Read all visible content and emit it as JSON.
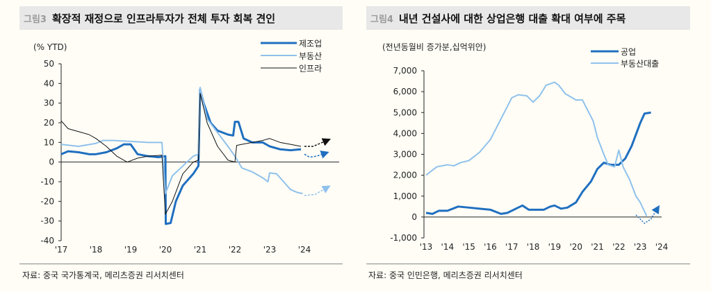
{
  "chart_data": [
    {
      "type": "line",
      "fig": "그림3",
      "title": "확장적 재정으로 인프라투자가 전체 투자 회복 견인",
      "unit": "(% YTD)",
      "ylim": [
        -40,
        50
      ],
      "yticks": [
        50,
        40,
        30,
        20,
        10,
        0,
        -10,
        -20,
        -30,
        -40
      ],
      "xlim": [
        2017,
        2025
      ],
      "xticks": [
        "'17",
        "'18",
        "'19",
        "'20",
        "'21",
        "'22",
        "'23",
        "'24"
      ],
      "source": "자료: 중국 국가통계국, 메리츠증권 리서치센터",
      "legend": "top-right",
      "series": [
        {
          "name": "제조업",
          "color": "#1f6fc0",
          "width": 3,
          "points": [
            [
              2017,
              4
            ],
            [
              2017.2,
              5.5
            ],
            [
              2017.5,
              5
            ],
            [
              2017.8,
              4
            ],
            [
              2018,
              4
            ],
            [
              2018.3,
              5
            ],
            [
              2018.6,
              7
            ],
            [
              2018.8,
              9
            ],
            [
              2019,
              9
            ],
            [
              2019.2,
              4
            ],
            [
              2019.5,
              3
            ],
            [
              2019.8,
              2.5
            ],
            [
              2020,
              3
            ],
            [
              2020.01,
              -31.5
            ],
            [
              2020.15,
              -31
            ],
            [
              2020.3,
              -20
            ],
            [
              2020.5,
              -12
            ],
            [
              2020.8,
              -6
            ],
            [
              2020.95,
              -2
            ],
            [
              2021,
              37
            ],
            [
              2021.1,
              30
            ],
            [
              2021.3,
              20
            ],
            [
              2021.5,
              16
            ],
            [
              2021.8,
              14
            ],
            [
              2021.95,
              13.5
            ],
            [
              2022,
              20.5
            ],
            [
              2022.1,
              20.5
            ],
            [
              2022.25,
              12
            ],
            [
              2022.5,
              10
            ],
            [
              2022.8,
              10
            ],
            [
              2023,
              8
            ],
            [
              2023.3,
              6.5
            ],
            [
              2023.6,
              6
            ],
            [
              2023.9,
              6.5
            ]
          ],
          "forecast": [
            [
              2024,
              4
            ],
            [
              2024.15,
              2.5
            ],
            [
              2024.35,
              3
            ],
            [
              2024.6,
              4.5
            ]
          ]
        },
        {
          "name": "부동산",
          "color": "#8fc1ec",
          "width": 2,
          "points": [
            [
              2017,
              9
            ],
            [
              2017.5,
              8
            ],
            [
              2018,
              9.5
            ],
            [
              2018.2,
              11
            ],
            [
              2018.5,
              11
            ],
            [
              2019,
              10.5
            ],
            [
              2019.5,
              10
            ],
            [
              2019.9,
              10
            ],
            [
              2020,
              -16
            ],
            [
              2020.2,
              -7
            ],
            [
              2020.5,
              -2
            ],
            [
              2020.8,
              3
            ],
            [
              2020.95,
              4
            ],
            [
              2021,
              38
            ],
            [
              2021.2,
              22
            ],
            [
              2021.5,
              15
            ],
            [
              2021.8,
              8
            ],
            [
              2022,
              3
            ],
            [
              2022.2,
              -3
            ],
            [
              2022.5,
              -5
            ],
            [
              2022.8,
              -8
            ],
            [
              2022.95,
              -10
            ],
            [
              2023,
              -5.5
            ],
            [
              2023.2,
              -6
            ],
            [
              2023.4,
              -10
            ],
            [
              2023.6,
              -14
            ],
            [
              2023.8,
              -15.5
            ],
            [
              2023.95,
              -16
            ]
          ],
          "forecast": [
            [
              2024,
              -17
            ],
            [
              2024.3,
              -16.5
            ],
            [
              2024.65,
              -13
            ]
          ]
        },
        {
          "name": "인프라",
          "color": "#111111",
          "width": 1,
          "points": [
            [
              2017,
              21
            ],
            [
              2017.2,
              17
            ],
            [
              2017.5,
              15.5
            ],
            [
              2017.8,
              14
            ],
            [
              2018,
              12
            ],
            [
              2018.3,
              8
            ],
            [
              2018.6,
              3
            ],
            [
              2018.9,
              0
            ],
            [
              2019.2,
              2
            ],
            [
              2019.5,
              3
            ],
            [
              2019.9,
              3.5
            ],
            [
              2020,
              -26.5
            ],
            [
              2020.2,
              -20
            ],
            [
              2020.5,
              -6
            ],
            [
              2020.8,
              0
            ],
            [
              2020.95,
              1
            ],
            [
              2021,
              35
            ],
            [
              2021.2,
              20
            ],
            [
              2021.5,
              8
            ],
            [
              2021.8,
              1
            ],
            [
              2022,
              0
            ],
            [
              2022.05,
              8.5
            ],
            [
              2022.2,
              9
            ],
            [
              2022.5,
              10
            ],
            [
              2022.8,
              11
            ],
            [
              2023,
              12
            ],
            [
              2023.3,
              10
            ],
            [
              2023.6,
              9
            ],
            [
              2023.9,
              8
            ]
          ],
          "forecast": [
            [
              2024,
              8
            ],
            [
              2024.25,
              8
            ],
            [
              2024.65,
              11
            ]
          ]
        }
      ]
    },
    {
      "type": "line",
      "fig": "그림4",
      "title": "내년 건설사에 대한 상업은행 대출 확대 여부에 주목",
      "unit": "(전년동월비 증가분,십억위안)",
      "ylim": [
        -1000,
        7000
      ],
      "yticks": [
        "7,000",
        "6,000",
        "5,000",
        "4,000",
        "3,000",
        "2,000",
        "1,000",
        "0",
        "-1,000"
      ],
      "xlim": [
        2013,
        2024
      ],
      "xticks": [
        "'13",
        "'14",
        "'15",
        "'16",
        "'17",
        "'18",
        "'19",
        "'20",
        "'21",
        "'22",
        "'23",
        "'24"
      ],
      "source": "자료: 중국 인민은행, 메리츠증권 리서치센터",
      "legend": "top-right",
      "series": [
        {
          "name": "공업",
          "color": "#1f6fc0",
          "width": 3,
          "points": [
            [
              2013,
              200
            ],
            [
              2013.3,
              150
            ],
            [
              2013.6,
              300
            ],
            [
              2014,
              300
            ],
            [
              2014.5,
              500
            ],
            [
              2015,
              450
            ],
            [
              2015.5,
              400
            ],
            [
              2016,
              350
            ],
            [
              2016.5,
              150
            ],
            [
              2016.8,
              200
            ],
            [
              2017.2,
              400
            ],
            [
              2017.5,
              550
            ],
            [
              2017.8,
              350
            ],
            [
              2018,
              350
            ],
            [
              2018.5,
              350
            ],
            [
              2018.8,
              500
            ],
            [
              2019,
              550
            ],
            [
              2019.3,
              400
            ],
            [
              2019.6,
              450
            ],
            [
              2020,
              700
            ],
            [
              2020.3,
              1200
            ],
            [
              2020.7,
              1700
            ],
            [
              2021,
              2300
            ],
            [
              2021.3,
              2600
            ],
            [
              2021.6,
              2500
            ],
            [
              2022,
              2500
            ],
            [
              2022.3,
              2800
            ],
            [
              2022.6,
              3400
            ],
            [
              2023,
              4500
            ],
            [
              2023.2,
              4950
            ],
            [
              2023.5,
              5000
            ]
          ],
          "forecast": []
        },
        {
          "name": "부동산대출",
          "color": "#8fc1ec",
          "width": 2,
          "points": [
            [
              2013,
              2000
            ],
            [
              2013.5,
              2400
            ],
            [
              2014,
              2500
            ],
            [
              2014.3,
              2450
            ],
            [
              2014.6,
              2600
            ],
            [
              2015,
              2700
            ],
            [
              2015.5,
              3100
            ],
            [
              2016,
              3700
            ],
            [
              2016.5,
              4700
            ],
            [
              2017,
              5700
            ],
            [
              2017.3,
              5850
            ],
            [
              2017.7,
              5800
            ],
            [
              2018,
              5500
            ],
            [
              2018.3,
              5800
            ],
            [
              2018.6,
              6300
            ],
            [
              2019,
              6450
            ],
            [
              2019.2,
              6300
            ],
            [
              2019.5,
              5900
            ],
            [
              2020,
              5600
            ],
            [
              2020.3,
              5600
            ],
            [
              2020.5,
              5200
            ],
            [
              2020.8,
              4600
            ],
            [
              2021,
              3800
            ],
            [
              2021.3,
              3000
            ],
            [
              2021.5,
              2500
            ],
            [
              2021.8,
              2400
            ],
            [
              2022,
              3200
            ],
            [
              2022.2,
              2400
            ],
            [
              2022.5,
              1800
            ],
            [
              2022.8,
              1000
            ],
            [
              2023,
              700
            ],
            [
              2023.3,
              50
            ]
          ],
          "forecast": []
        }
      ],
      "extra_forecast": {
        "color": "#1f6fc0",
        "points": [
          [
            2022.8,
            100
          ],
          [
            2023.2,
            -300
          ],
          [
            2023.5,
            -100
          ],
          [
            2023.8,
            400
          ]
        ]
      }
    }
  ]
}
